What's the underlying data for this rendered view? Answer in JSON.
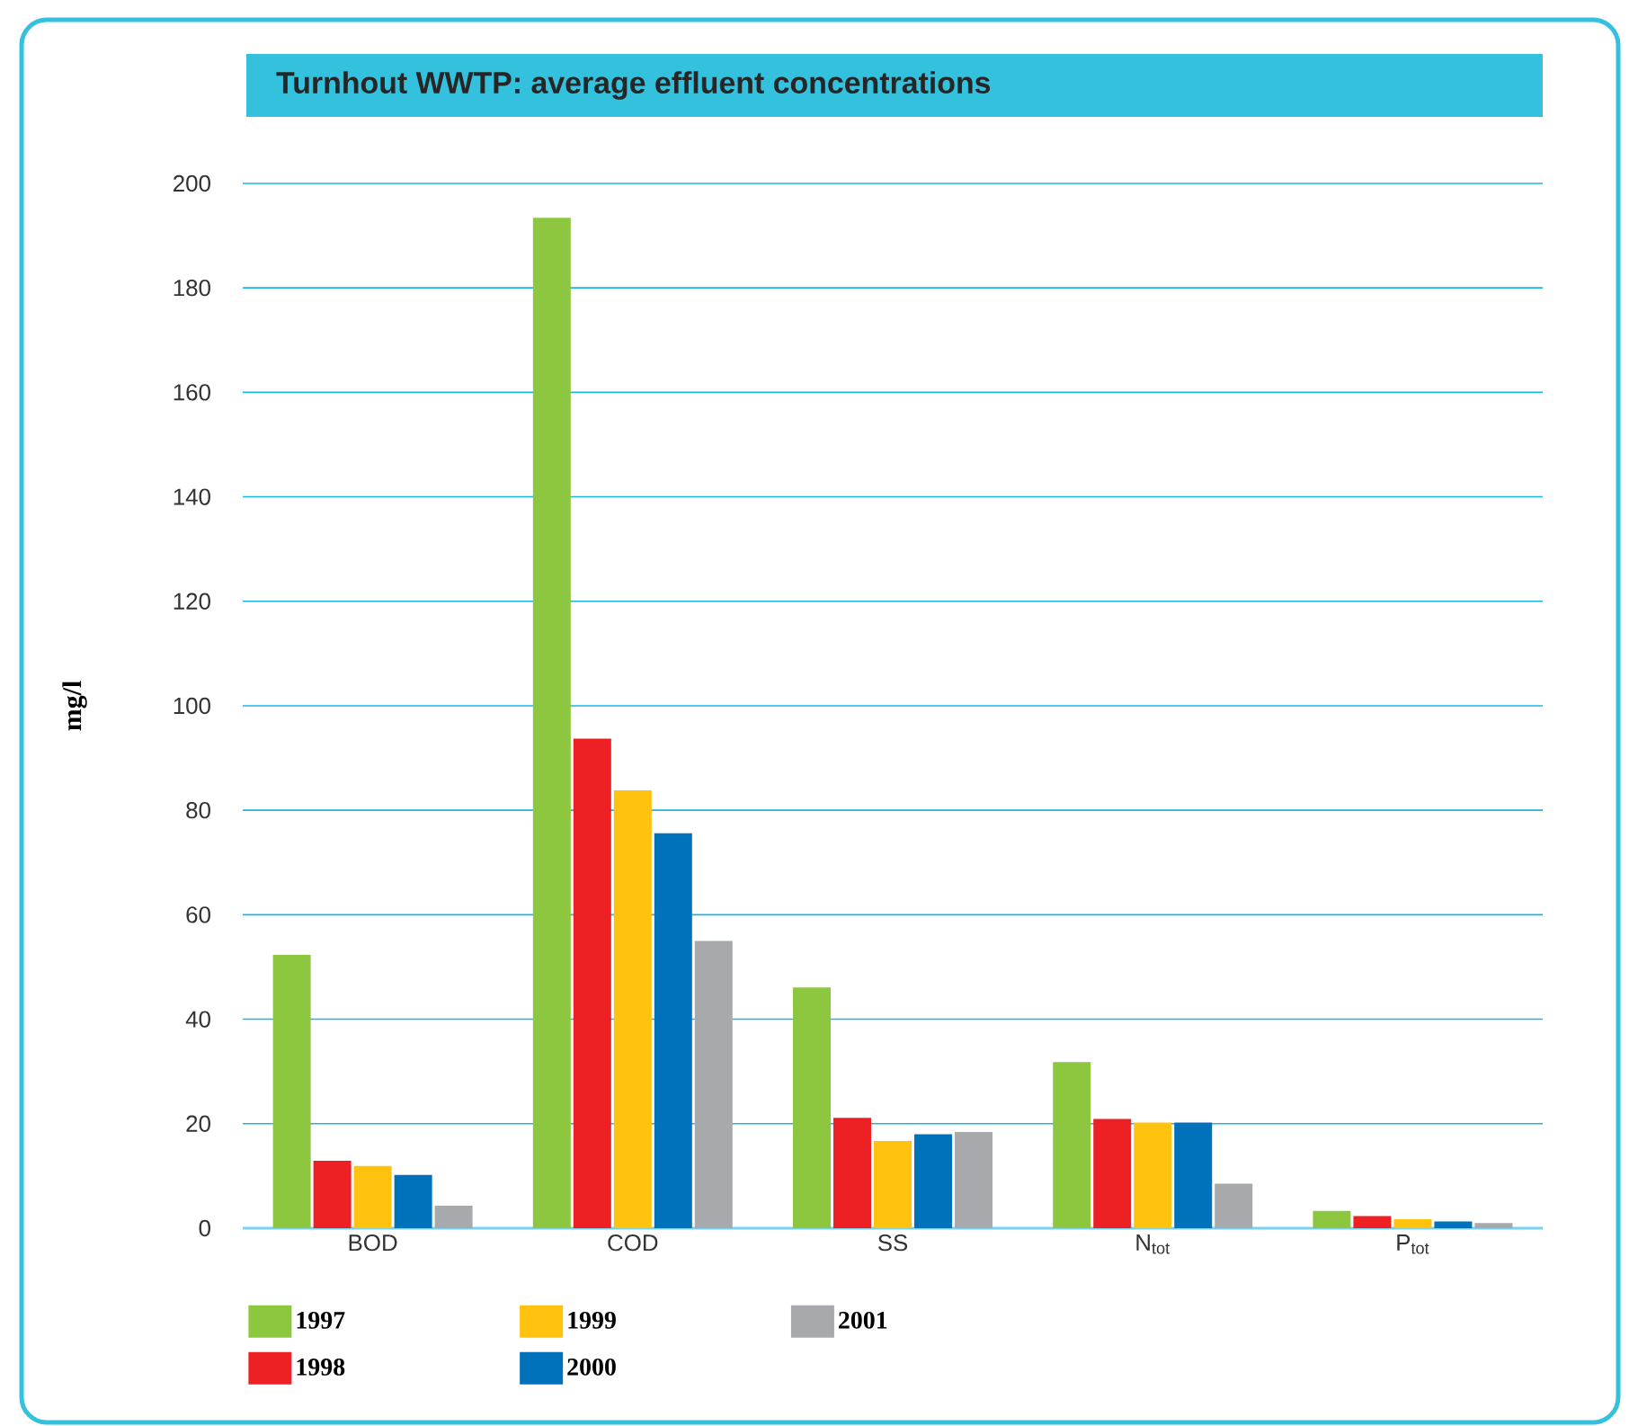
{
  "chart_data": {
    "type": "bar",
    "title": "Turnhout WWTP: average effluent concentrations",
    "ylabel": "mg/l",
    "categories": [
      "BOD",
      "COD",
      "SS",
      "N$_{tot}$",
      "P$_{tot}$"
    ],
    "series": [
      {
        "name": "1997",
        "color": "#8dc63f",
        "values": [
          52.3,
          193.4,
          46.1,
          31.8,
          3.3
        ]
      },
      {
        "name": "1998",
        "color": "#ed2024",
        "values": [
          12.9,
          93.7,
          21.1,
          20.9,
          2.3
        ]
      },
      {
        "name": "1999",
        "color": "#ffc20e",
        "values": [
          11.9,
          83.8,
          16.7,
          20.2,
          1.7
        ]
      },
      {
        "name": "2000",
        "color": "#0072bc",
        "values": [
          10.2,
          75.6,
          18.0,
          20.2,
          1.3
        ]
      },
      {
        "name": "2001",
        "color": "#a7a9ac",
        "values": [
          4.3,
          55.0,
          18.4,
          8.5,
          1.0
        ]
      }
    ],
    "ylim": [
      0,
      200
    ],
    "yticks": [
      0,
      20,
      40,
      60,
      80,
      100,
      120,
      140,
      160,
      180,
      200
    ],
    "grid": "y",
    "legend": "bottom"
  }
}
